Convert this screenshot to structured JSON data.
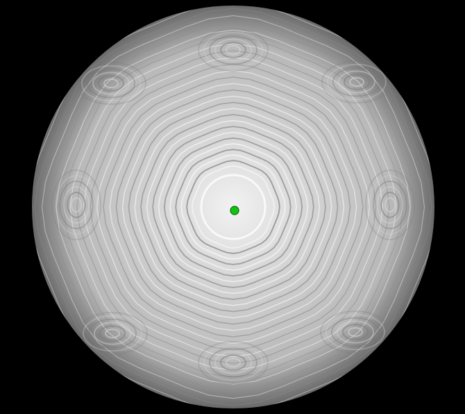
{
  "scene": {
    "background_color": "#000000",
    "sphere": {
      "rim_color": "#6a6a6a",
      "mid_color": "#b8b8b8",
      "center_color": "#f2f2f2",
      "ring_dark_color": "#8c8c8c",
      "ring_light_color": "#f4f4f4"
    },
    "marker": {
      "icon": "green-dot-marker",
      "fill_color": "#12c212",
      "stroke_color": "#0a6a0a"
    }
  }
}
